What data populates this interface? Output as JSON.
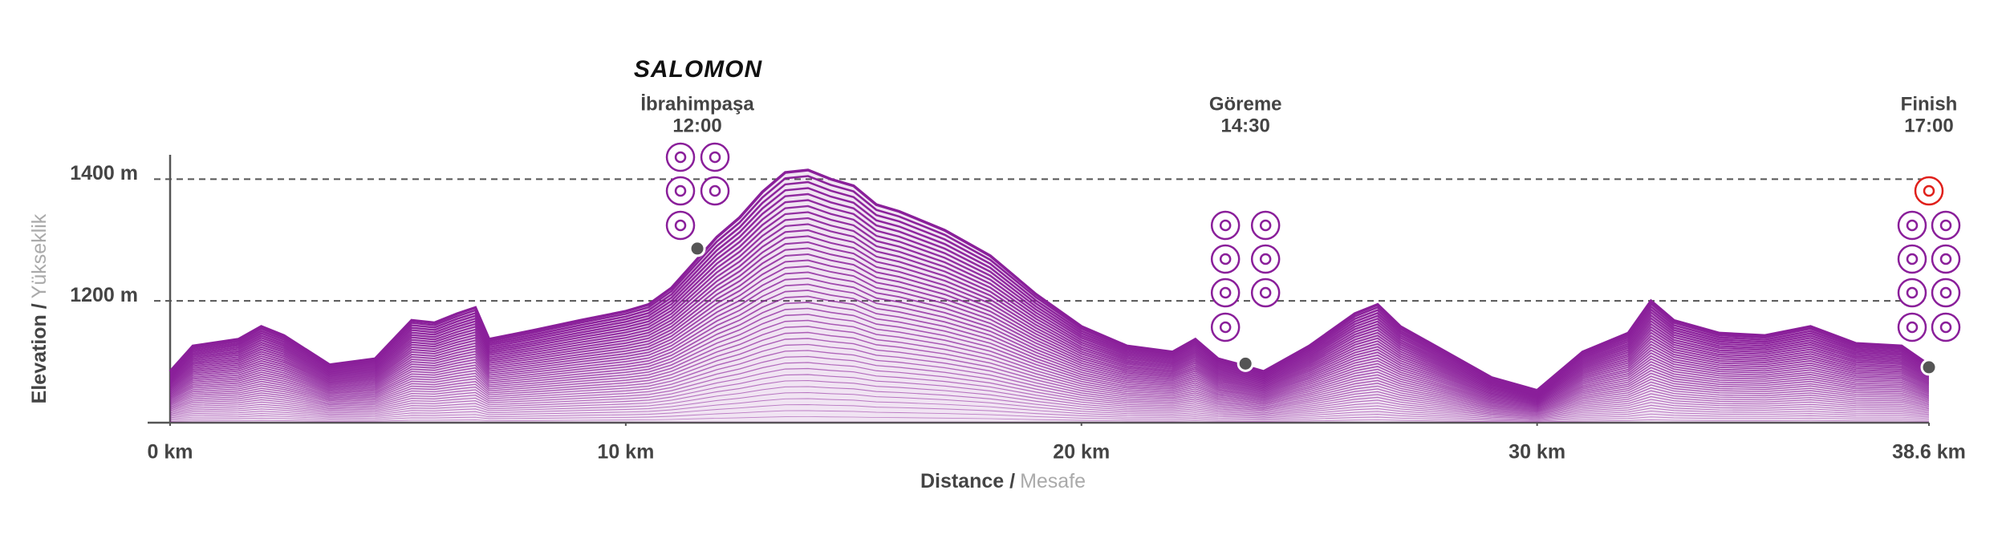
{
  "chart_data": {
    "type": "area",
    "x_label": "Distance /",
    "x_label_secondary": "Mesafe",
    "y_label": "Elevation /",
    "y_label_secondary": "Yükseklik",
    "sponsor": "SALOMON",
    "color": "#8a1f9a",
    "x": [
      0,
      0.5,
      1.5,
      2,
      2.5,
      3.5,
      4.5,
      5.3,
      5.8,
      6.3,
      6.7,
      7,
      8,
      9,
      10,
      10.5,
      11,
      11.5,
      12,
      12.5,
      13,
      13.5,
      14,
      14.5,
      15,
      15.5,
      16,
      17,
      18,
      19,
      20,
      21,
      22,
      22.5,
      23,
      23.5,
      24,
      25,
      26,
      26.5,
      27,
      28,
      29,
      30,
      31,
      32,
      32.5,
      33,
      34,
      35,
      36,
      37,
      38,
      38.6
    ],
    "values": [
      1084,
      1126,
      1137,
      1158,
      1143,
      1095,
      1105,
      1168,
      1164,
      1179,
      1189,
      1137,
      1152,
      1168,
      1183,
      1194,
      1221,
      1263,
      1305,
      1337,
      1379,
      1411,
      1415,
      1400,
      1389,
      1358,
      1347,
      1316,
      1274,
      1211,
      1158,
      1126,
      1116,
      1137,
      1105,
      1095,
      1084,
      1126,
      1179,
      1194,
      1158,
      1116,
      1074,
      1053,
      1116,
      1147,
      1200,
      1168,
      1147,
      1143,
      1158,
      1130,
      1126,
      1095
    ],
    "xlim": [
      0,
      38.6
    ],
    "ylim": [
      1000,
      1440
    ],
    "xticks": [
      {
        "value": 0,
        "label": "0 km"
      },
      {
        "value": 10,
        "label": "10 km"
      },
      {
        "value": 20,
        "label": "20 km"
      },
      {
        "value": 30,
        "label": "30 km"
      },
      {
        "value": 38.6,
        "label": "38.6 km"
      }
    ],
    "yticks": [
      {
        "value": 1200,
        "label": "1200 m"
      },
      {
        "value": 1400,
        "label": "1400 m"
      }
    ],
    "grid": true,
    "checkpoints": [
      {
        "name": "İbrahimpaşa",
        "time": "12:00",
        "x": 11.57,
        "y": 1286
      },
      {
        "name": "Göreme",
        "time": "14:30",
        "x": 23.6,
        "y": 1097
      },
      {
        "name": "Finish",
        "time": "17:00",
        "x": 38.6,
        "y": 1091
      }
    ]
  }
}
